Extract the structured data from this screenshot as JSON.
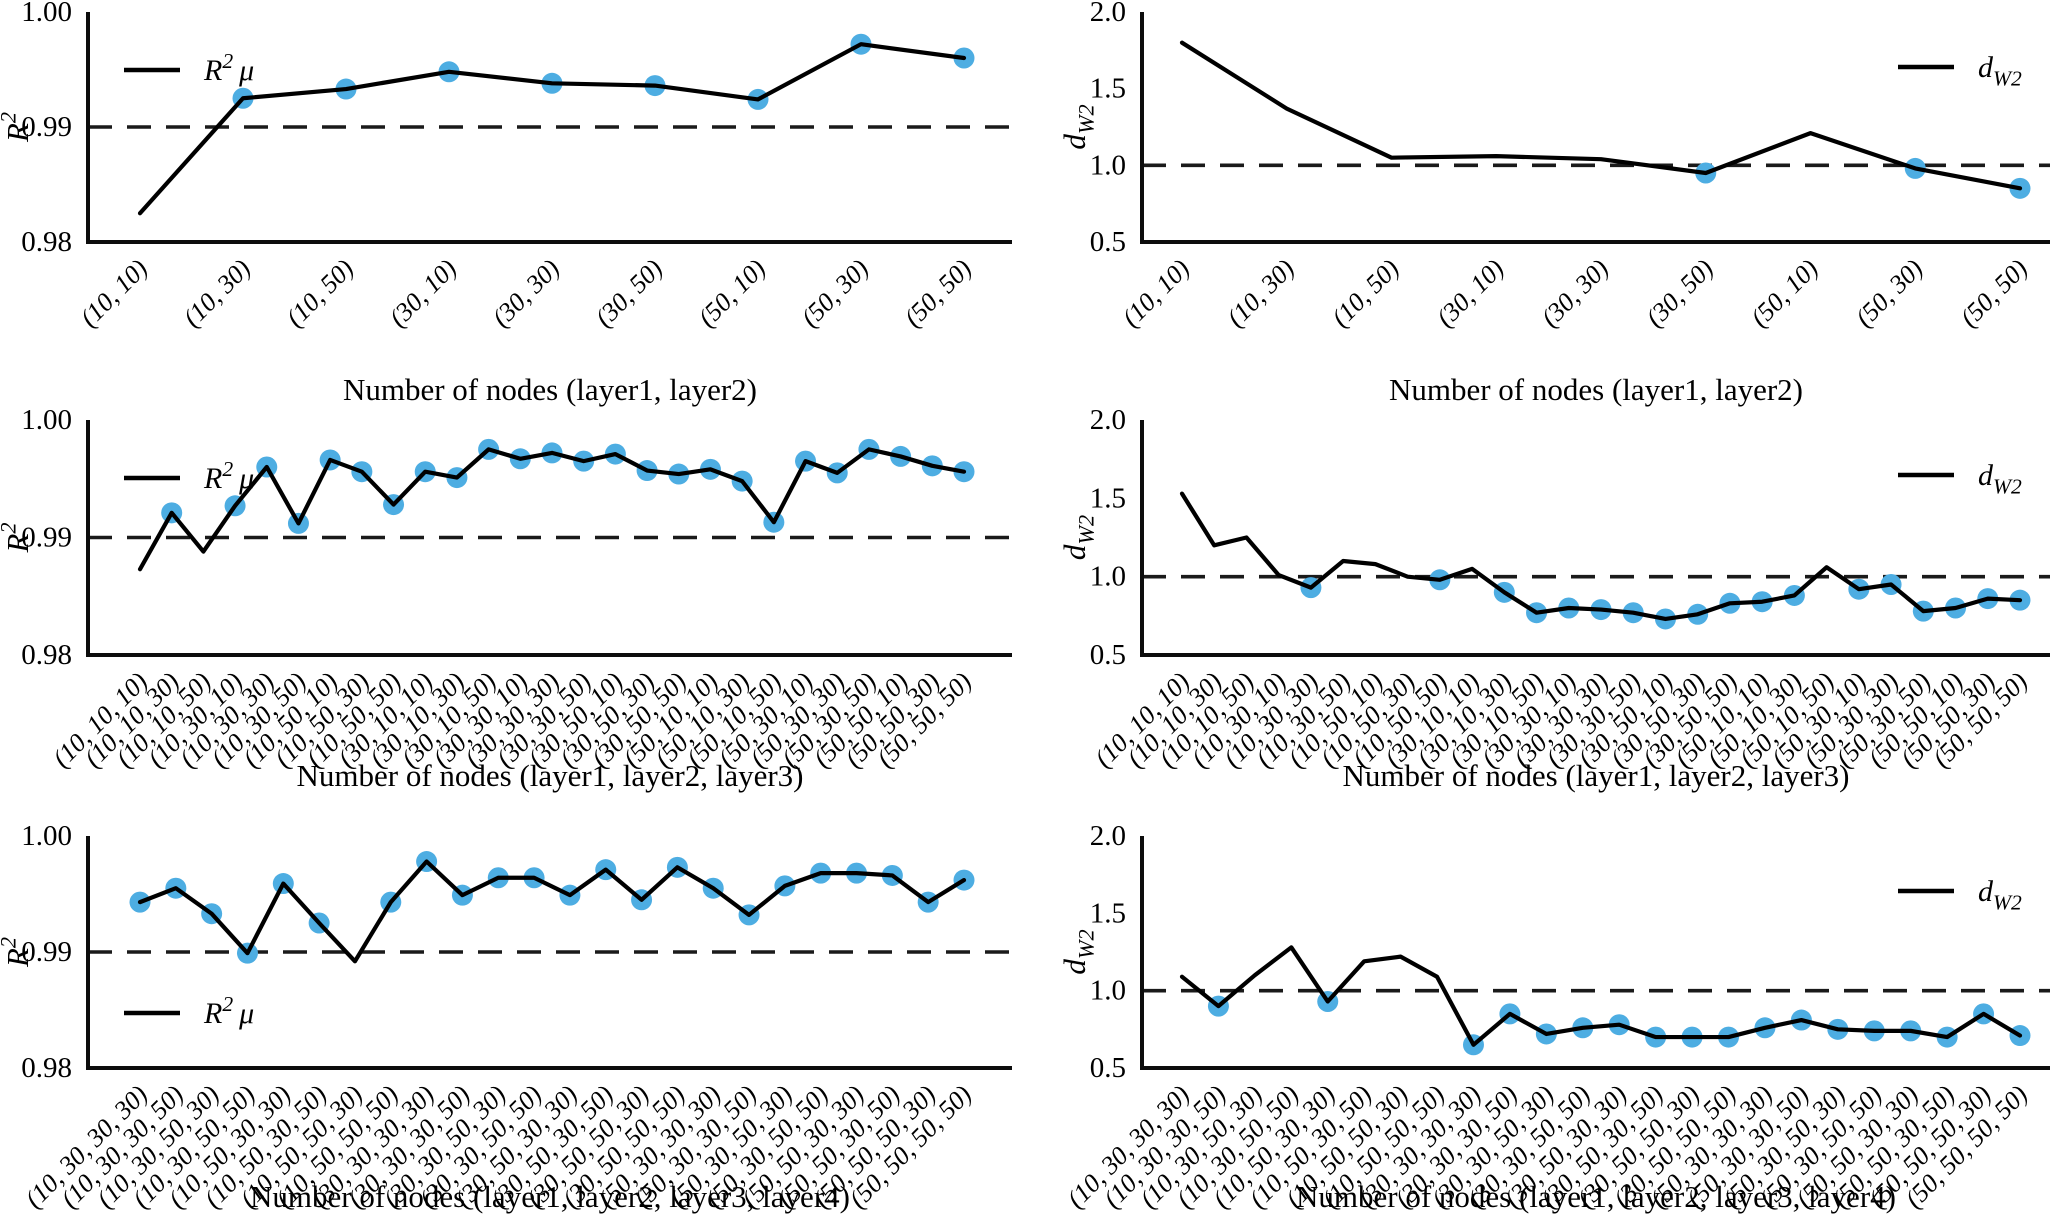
{
  "figure": {
    "background": "#ffffff",
    "colors": {
      "line": "#000000",
      "marker": "#4dade2",
      "dashed": "#1a1a1a",
      "spine": "#0d0d0d",
      "text": "#000000"
    },
    "note_marker_meaning": "light blue dots mark plotted configurations"
  },
  "chart_data": [
    {
      "id": "r2-two-layers",
      "type": "line",
      "row": 0,
      "col": 0,
      "xlabel": "Number of nodes (layer1, layer2)",
      "ylabel": {
        "base": "R",
        "sup": "2"
      },
      "legend": {
        "base": "R",
        "sup": "2",
        "suffix": "μ",
        "text": "R²μ",
        "position": "upper-left"
      },
      "ylim": [
        0.98,
        1.0
      ],
      "ytick_values": [
        0.98,
        0.99,
        1.0
      ],
      "ytick_labels": [
        "0.98",
        "0.99",
        "1.00"
      ],
      "dashed_hline": 0.99,
      "grid": false,
      "categories": [
        "(10, 10)",
        "(10, 30)",
        "(10, 50)",
        "(30, 10)",
        "(30, 30)",
        "(30, 50)",
        "(50, 10)",
        "(50, 30)",
        "(50, 50)"
      ],
      "values": [
        0.9825,
        0.9925,
        0.9933,
        0.9948,
        0.9938,
        0.9936,
        0.9924,
        0.9972,
        0.996
      ],
      "marked": [
        0,
        1,
        1,
        1,
        1,
        1,
        1,
        1,
        1
      ]
    },
    {
      "id": "dw2-two-layers",
      "type": "line",
      "row": 0,
      "col": 1,
      "xlabel": "Number of nodes (layer1, layer2)",
      "ylabel": {
        "base": "d",
        "sub": "W2"
      },
      "legend": {
        "base": "d",
        "sub": "W2",
        "text": "d_W2",
        "position": "upper-right"
      },
      "ylim": [
        0.5,
        2.0
      ],
      "ytick_values": [
        0.5,
        1.0,
        1.5,
        2.0
      ],
      "ytick_labels": [
        "0.5",
        "1.0",
        "1.5",
        "2.0"
      ],
      "dashed_hline": 1.0,
      "grid": false,
      "categories": [
        "(10, 10)",
        "(10, 30)",
        "(10, 50)",
        "(30, 10)",
        "(30, 30)",
        "(30, 50)",
        "(50, 10)",
        "(50, 30)",
        "(50, 50)"
      ],
      "values": [
        1.8,
        1.37,
        1.05,
        1.06,
        1.04,
        0.95,
        1.21,
        0.98,
        0.85
      ],
      "marked": [
        0,
        0,
        0,
        0,
        0,
        1,
        0,
        1,
        1
      ]
    },
    {
      "id": "r2-three-layers",
      "type": "line",
      "row": 1,
      "col": 0,
      "xlabel": "Number of nodes (layer1, layer2, layer3)",
      "ylabel": {
        "base": "R",
        "sup": "2"
      },
      "legend": {
        "base": "R",
        "sup": "2",
        "suffix": "μ",
        "text": "R²μ",
        "position": "upper-left"
      },
      "ylim": [
        0.98,
        1.0
      ],
      "ytick_values": [
        0.98,
        0.99,
        1.0
      ],
      "ytick_labels": [
        "0.98",
        "0.99",
        "1.00"
      ],
      "dashed_hline": 0.99,
      "grid": false,
      "categories": [
        "(10, 10, 10)",
        "(10, 10, 30)",
        "(10, 10, 50)",
        "(10, 30, 10)",
        "(10, 30, 30)",
        "(10, 30, 50)",
        "(10, 50, 10)",
        "(10, 50, 30)",
        "(10, 50, 50)",
        "(30, 10, 10)",
        "(30, 10, 30)",
        "(30, 10, 50)",
        "(30, 30, 10)",
        "(30, 30, 30)",
        "(30, 30, 50)",
        "(30, 50, 10)",
        "(30, 50, 30)",
        "(30, 50, 50)",
        "(50, 10, 10)",
        "(50, 10, 30)",
        "(50, 10, 50)",
        "(50, 30, 10)",
        "(50, 30, 30)",
        "(50, 30, 50)",
        "(50, 50, 10)",
        "(50, 50, 30)",
        "(50, 50, 50)"
      ],
      "values": [
        0.9873,
        0.9921,
        0.9888,
        0.9927,
        0.996,
        0.9912,
        0.9966,
        0.9956,
        0.9928,
        0.9956,
        0.9951,
        0.9975,
        0.9967,
        0.9972,
        0.9965,
        0.9971,
        0.9957,
        0.9954,
        0.9958,
        0.9948,
        0.9913,
        0.9965,
        0.9955,
        0.9975,
        0.9969,
        0.9961,
        0.9956
      ],
      "marked": [
        0,
        1,
        0,
        1,
        1,
        1,
        1,
        1,
        1,
        1,
        1,
        1,
        1,
        1,
        1,
        1,
        1,
        1,
        1,
        1,
        1,
        1,
        1,
        1,
        1,
        1,
        1
      ]
    },
    {
      "id": "dw2-three-layers",
      "type": "line",
      "row": 1,
      "col": 1,
      "xlabel": "Number of nodes (layer1, layer2, layer3)",
      "ylabel": {
        "base": "d",
        "sub": "W2"
      },
      "legend": {
        "base": "d",
        "sub": "W2",
        "text": "d_W2",
        "position": "upper-right"
      },
      "ylim": [
        0.5,
        2.0
      ],
      "ytick_values": [
        0.5,
        1.0,
        1.5,
        2.0
      ],
      "ytick_labels": [
        "0.5",
        "1.0",
        "1.5",
        "2.0"
      ],
      "dashed_hline": 1.0,
      "grid": false,
      "categories": [
        "(10, 10, 10)",
        "(10, 10, 30)",
        "(10, 10, 50)",
        "(10, 30, 10)",
        "(10, 30, 30)",
        "(10, 30, 50)",
        "(10, 50, 10)",
        "(10, 50, 30)",
        "(10, 50, 50)",
        "(30, 10, 10)",
        "(30, 10, 30)",
        "(30, 10, 50)",
        "(30, 30, 10)",
        "(30, 30, 30)",
        "(30, 30, 50)",
        "(30, 50, 10)",
        "(30, 50, 30)",
        "(30, 50, 50)",
        "(50, 10, 10)",
        "(50, 10, 30)",
        "(50, 10, 50)",
        "(50, 30, 10)",
        "(50, 30, 30)",
        "(50, 30, 50)",
        "(50, 50, 10)",
        "(50, 50, 30)",
        "(50, 50, 50)"
      ],
      "values": [
        1.53,
        1.2,
        1.25,
        1.01,
        0.93,
        1.1,
        1.08,
        1.0,
        0.98,
        1.05,
        0.9,
        0.77,
        0.8,
        0.79,
        0.77,
        0.73,
        0.76,
        0.83,
        0.84,
        0.88,
        1.06,
        0.92,
        0.95,
        0.78,
        0.8,
        0.86,
        0.85
      ],
      "marked": [
        0,
        0,
        0,
        0,
        1,
        0,
        0,
        0,
        1,
        0,
        1,
        1,
        1,
        1,
        1,
        1,
        1,
        1,
        1,
        1,
        0,
        1,
        1,
        1,
        1,
        1,
        1
      ]
    },
    {
      "id": "r2-four-layers",
      "type": "line",
      "row": 2,
      "col": 0,
      "xlabel": "Number of nodes (layer1, layer2, layer3, layer4)",
      "ylabel": {
        "base": "R",
        "sup": "2"
      },
      "legend": {
        "base": "R",
        "sup": "2",
        "suffix": "μ",
        "text": "R²μ",
        "position": "lower-left"
      },
      "ylim": [
        0.98,
        1.0
      ],
      "ytick_values": [
        0.98,
        0.99,
        1.0
      ],
      "ytick_labels": [
        "0.98",
        "0.99",
        "1.00"
      ],
      "dashed_hline": 0.99,
      "grid": false,
      "categories": [
        "(10, 30, 30, 30)",
        "(10, 30, 30, 50)",
        "(10, 30, 50, 30)",
        "(10, 30, 50, 50)",
        "(10, 50, 30, 30)",
        "(10, 50, 30, 50)",
        "(10, 50, 50, 30)",
        "(10, 50, 50, 50)",
        "(30, 30, 30, 30)",
        "(30, 30, 30, 50)",
        "(30, 30, 50, 30)",
        "(30, 30, 50, 50)",
        "(30, 50, 30, 30)",
        "(30, 50, 30, 50)",
        "(30, 50, 50, 30)",
        "(30, 50, 50, 50)",
        "(50, 30, 30, 30)",
        "(50, 30, 30, 50)",
        "(50, 30, 50, 30)",
        "(50, 30, 50, 50)",
        "(50, 50, 30, 30)",
        "(50, 50, 30, 50)",
        "(50, 50, 50, 30)",
        "(50, 50, 50, 50)"
      ],
      "values": [
        0.9943,
        0.9955,
        0.9933,
        0.9899,
        0.9959,
        0.9925,
        0.9892,
        0.9943,
        0.9978,
        0.9949,
        0.9964,
        0.9964,
        0.9949,
        0.9971,
        0.9945,
        0.9973,
        0.9955,
        0.9932,
        0.9957,
        0.9968,
        0.9968,
        0.9966,
        0.9943,
        0.9962
      ],
      "marked": [
        1,
        1,
        1,
        1,
        1,
        1,
        0,
        1,
        1,
        1,
        1,
        1,
        1,
        1,
        1,
        1,
        1,
        1,
        1,
        1,
        1,
        1,
        1,
        1
      ]
    },
    {
      "id": "dw2-four-layers",
      "type": "line",
      "row": 2,
      "col": 1,
      "xlabel": "Number of nodes (layer1, layer2, layer3, layer4)",
      "ylabel": {
        "base": "d",
        "sub": "W2"
      },
      "legend": {
        "base": "d",
        "sub": "W2",
        "text": "d_W2",
        "position": "upper-right"
      },
      "ylim": [
        0.5,
        2.0
      ],
      "ytick_values": [
        0.5,
        1.0,
        1.5,
        2.0
      ],
      "ytick_labels": [
        "0.5",
        "1.0",
        "1.5",
        "2.0"
      ],
      "dashed_hline": 1.0,
      "grid": false,
      "categories": [
        "(10, 30, 30, 30)",
        "(10, 30, 30, 50)",
        "(10, 30, 50, 30)",
        "(10, 30, 50, 50)",
        "(10, 50, 30, 30)",
        "(10, 50, 30, 50)",
        "(10, 50, 50, 30)",
        "(10, 50, 50, 50)",
        "(30, 30, 30, 30)",
        "(30, 30, 30, 50)",
        "(30, 30, 50, 30)",
        "(30, 30, 50, 50)",
        "(30, 50, 30, 30)",
        "(30, 50, 30, 50)",
        "(30, 50, 50, 30)",
        "(30, 50, 50, 50)",
        "(50, 30, 30, 30)",
        "(50, 30, 30, 50)",
        "(50, 30, 50, 30)",
        "(50, 30, 50, 50)",
        "(50, 50, 30, 30)",
        "(50, 50, 30, 50)",
        "(50, 50, 50, 30)",
        "(50, 50, 50, 50)"
      ],
      "values": [
        1.09,
        0.9,
        1.1,
        1.28,
        0.93,
        1.19,
        1.22,
        1.09,
        0.65,
        0.85,
        0.72,
        0.76,
        0.78,
        0.7,
        0.7,
        0.7,
        0.76,
        0.81,
        0.75,
        0.74,
        0.74,
        0.7,
        0.85,
        0.71
      ],
      "marked": [
        0,
        1,
        0,
        0,
        1,
        0,
        0,
        0,
        1,
        1,
        1,
        1,
        1,
        1,
        1,
        1,
        1,
        1,
        1,
        1,
        1,
        1,
        1,
        1
      ]
    }
  ]
}
